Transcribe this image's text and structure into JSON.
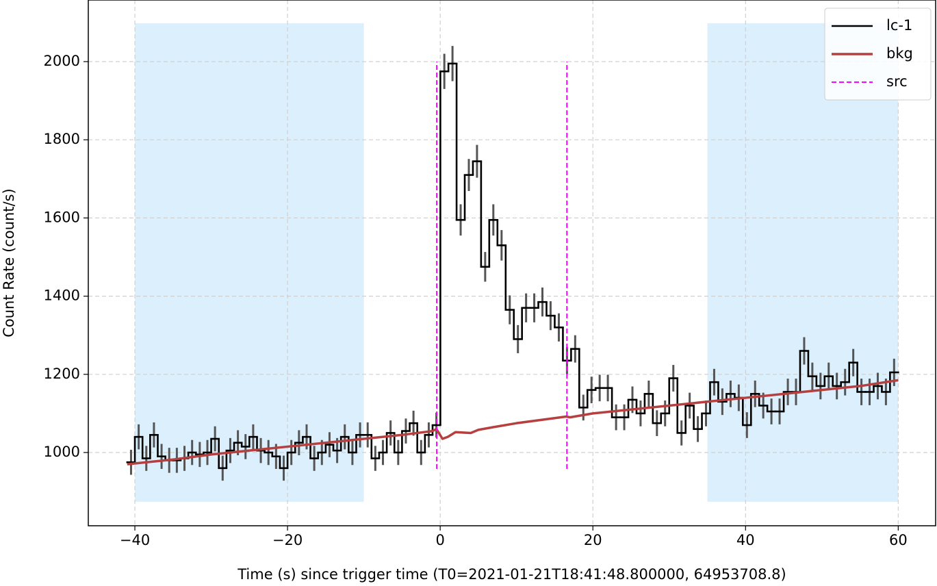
{
  "chart_data": {
    "type": "light-curve",
    "xlabel": "Time (s) since trigger time (T0=2021-01-21T18:41:48.800000, 64953708.8)",
    "ylabel": "Count Rate (count/s)",
    "xlim": [
      -46.1,
      64.9
    ],
    "ylim": [
      812.6,
      2157.6
    ],
    "xticks": [
      {
        "value": -40,
        "label": "−40"
      },
      {
        "value": -20,
        "label": "−20"
      },
      0,
      20,
      40,
      60
    ],
    "yticks": [
      1000,
      1200,
      1400,
      1600,
      1800,
      2000
    ],
    "grid": true,
    "legend": "upper right",
    "shaded_regions": {
      "color": "#dbeffc",
      "regions": [
        {
          "x": [
            -40,
            -10
          ],
          "y": [
            874,
            2098
          ]
        },
        {
          "x": [
            35,
            60
          ],
          "y": [
            874,
            2098
          ]
        }
      ]
    },
    "series": [
      {
        "name": "lc-1",
        "type": "step",
        "color": "#000000",
        "error_color": "#555555",
        "x": [
          -40.5,
          -39.5,
          -38.5,
          -37.5,
          -36.5,
          -35.5,
          -34.5,
          -33.5,
          -32.5,
          -31.5,
          -30.5,
          -29.5,
          -28.5,
          -27.5,
          -26.5,
          -25.5,
          -24.5,
          -23.5,
          -22.5,
          -21.5,
          -20.5,
          -19.5,
          -18.5,
          -17.5,
          -16.5,
          -15.5,
          -14.5,
          -13.5,
          -12.5,
          -11.5,
          -10.5,
          -9.5,
          -8.5,
          -7.5,
          -6.5,
          -5.5,
          -4.5,
          -3.5,
          -2.5,
          -1.5,
          -0.5,
          0.54,
          1.61,
          2.68,
          3.75,
          4.82,
          5.89,
          6.96,
          8.04,
          9.11,
          10.18,
          11.25,
          12.32,
          13.39,
          14.46,
          15.54,
          16.61,
          17.68,
          18.75,
          19.82,
          20.89,
          21.96,
          23.04,
          24.11,
          25.18,
          26.25,
          27.32,
          28.39,
          29.46,
          30.54,
          31.61,
          32.68,
          33.75,
          34.82,
          35.89,
          36.96,
          38.04,
          39.11,
          40.18,
          41.25,
          42.32,
          43.39,
          44.46,
          45.54,
          46.61,
          47.68,
          48.75,
          49.82,
          50.89,
          51.96,
          53.04,
          54.11,
          55.18,
          56.25,
          57.32,
          58.39,
          59.46
        ],
        "values": [
          975,
          1040,
          985,
          1045,
          990,
          980,
          980,
          985,
          1000,
          995,
          1000,
          1035,
          960,
          1005,
          1025,
          1015,
          1040,
          1005,
          1000,
          990,
          960,
          1000,
          1025,
          1040,
          985,
          1000,
          1020,
          1005,
          1040,
          1000,
          1045,
          1045,
          985,
          1000,
          1050,
          1000,
          1055,
          1075,
          1000,
          1045,
          1070,
          1975,
          1995,
          1595,
          1710,
          1745,
          1475,
          1595,
          1530,
          1365,
          1290,
          1370,
          1370,
          1385,
          1350,
          1320,
          1235,
          1265,
          1115,
          1160,
          1165,
          1165,
          1090,
          1090,
          1135,
          1100,
          1150,
          1075,
          1100,
          1190,
          1050,
          1120,
          1060,
          1100,
          1180,
          1130,
          1150,
          1140,
          1070,
          1150,
          1120,
          1105,
          1105,
          1155,
          1155,
          1260,
          1195,
          1170,
          1195,
          1170,
          1180,
          1230,
          1155,
          1155,
          1170,
          1155,
          1205
        ],
        "errors": [
          32,
          32,
          32,
          32,
          32,
          32,
          32,
          32,
          32,
          32,
          32,
          32,
          32,
          32,
          32,
          32,
          32,
          32,
          32,
          32,
          32,
          32,
          32,
          32,
          32,
          32,
          32,
          32,
          32,
          32,
          32,
          32,
          32,
          32,
          32,
          32,
          32,
          32,
          32,
          32,
          32,
          45,
          45,
          40,
          41,
          42,
          38,
          40,
          39,
          37,
          36,
          37,
          37,
          37,
          37,
          36,
          35,
          35,
          33,
          34,
          34,
          34,
          33,
          33,
          34,
          33,
          34,
          33,
          33,
          34,
          32,
          33,
          33,
          33,
          34,
          34,
          34,
          34,
          33,
          34,
          33,
          33,
          33,
          34,
          34,
          35,
          35,
          34,
          35,
          34,
          34,
          35,
          34,
          34,
          34,
          34,
          35
        ]
      },
      {
        "name": "bkg",
        "type": "line",
        "color": "#b5403f",
        "x": [
          -41,
          -35,
          -30,
          -25,
          -20,
          -15,
          -10,
          -5,
          -1,
          -0.5,
          0.3,
          1,
          2,
          4,
          5,
          7,
          10,
          15,
          16.5,
          17,
          20,
          25,
          30,
          35,
          40,
          45,
          50,
          55,
          60
        ],
        "values": [
          970,
          982,
          995,
          1005,
          1015,
          1025,
          1035,
          1045,
          1055,
          1060,
          1035,
          1040,
          1052,
          1050,
          1058,
          1065,
          1075,
          1088,
          1092,
          1090,
          1100,
          1110,
          1120,
          1130,
          1140,
          1150,
          1160,
          1170,
          1185
        ]
      },
      {
        "name": "src",
        "type": "vlines",
        "color": "#ff00ff",
        "x": [
          -0.45,
          16.6
        ],
        "ymin": 958,
        "ymax": 2000
      }
    ]
  }
}
